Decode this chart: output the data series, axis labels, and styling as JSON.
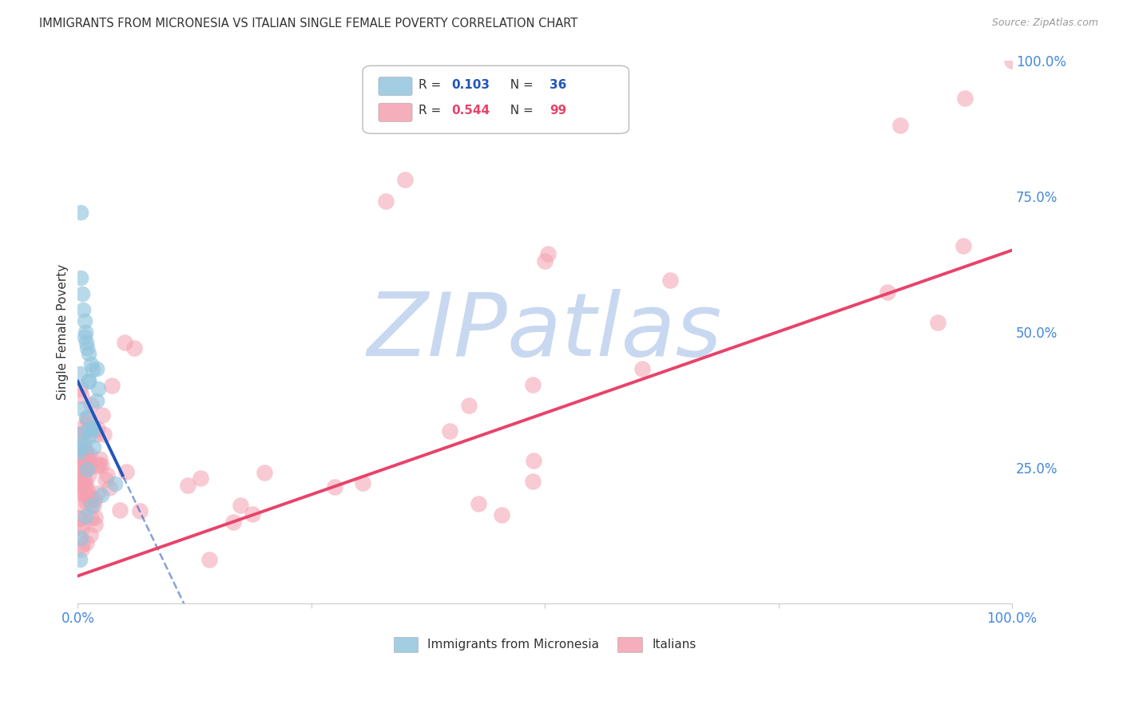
{
  "title": "IMMIGRANTS FROM MICRONESIA VS ITALIAN SINGLE FEMALE POVERTY CORRELATION CHART",
  "source": "Source: ZipAtlas.com",
  "ylabel": "Single Female Poverty",
  "right_yticks": [
    "100.0%",
    "75.0%",
    "50.0%",
    "25.0%"
  ],
  "right_ytick_vals": [
    1.0,
    0.75,
    0.5,
    0.25
  ],
  "legend_label_blue": "Immigrants from Micronesia",
  "legend_label_pink": "Italians",
  "watermark": "ZIPatlas",
  "blue_color": "#92C5DE",
  "blue_line_color": "#2255BB",
  "pink_color": "#F4A0B0",
  "pink_line_color": "#E8436A",
  "title_color": "#333333",
  "source_color": "#999999",
  "axis_label_color": "#4488DD",
  "right_axis_color": "#4488DD",
  "watermark_color": "#C8D8F0",
  "background_color": "#FFFFFF",
  "grid_color": "#E0E0E0",
  "blue_r": "0.103",
  "blue_n": "36",
  "pink_r": "0.544",
  "pink_n": "99"
}
